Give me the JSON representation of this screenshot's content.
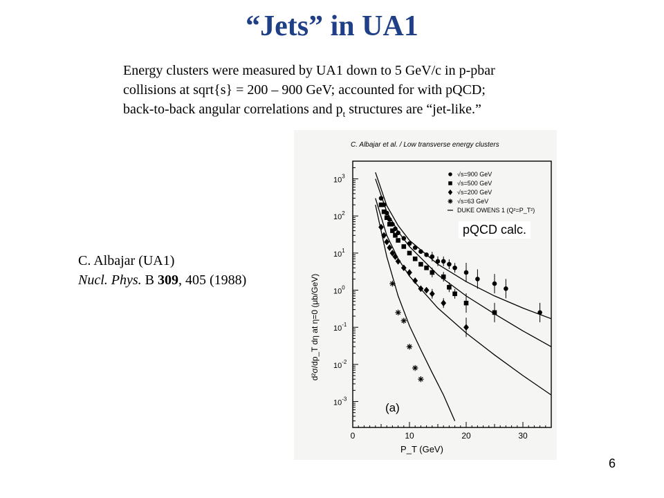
{
  "slide": {
    "title": "“Jets” in UA1",
    "desc_lines": [
      "Energy clusters were measured by UA1 down to 5 GeV/c in p-pbar",
      "collisions at sqrt{s} = 200 – 900 GeV; accounted for with pQCD;",
      "back-to-back angular correlations and p",
      "t",
      " structures are “jet-like.”"
    ],
    "citation": {
      "author": "C. Albajar (UA1)",
      "journal": "Nucl. Phys.",
      "series": " B ",
      "volume": "309",
      "pages_year": ", 405 (1988)"
    },
    "page_number": "6",
    "overlay_label": "pQCD calc."
  },
  "colors": {
    "title": "#1f3f86",
    "text": "#000000"
  },
  "chart_data": {
    "type": "scatter",
    "header": "C. Albajar et al. / Low transverse energy clusters",
    "panel_label": "(a)",
    "xlabel": "P_T (GeV)",
    "ylabel": "d²σ/dp_T dη at η=0 (μb/GeV)",
    "x_scale": "linear",
    "y_scale": "log",
    "xlim": [
      0,
      35
    ],
    "ylim": [
      0.0002,
      3000
    ],
    "x_ticks": [
      0,
      10,
      20,
      30
    ],
    "y_ticks": [
      {
        "value": 0.001,
        "label": "10",
        "exp": "-3"
      },
      {
        "value": 0.01,
        "label": "10",
        "exp": "-2"
      },
      {
        "value": 0.1,
        "label": "10",
        "exp": "-1"
      },
      {
        "value": 1,
        "label": "10",
        "exp": "0"
      },
      {
        "value": 10,
        "label": "10",
        "exp": "1"
      },
      {
        "value": 100,
        "label": "10",
        "exp": "2"
      },
      {
        "value": 1000,
        "label": "10",
        "exp": "3"
      }
    ],
    "legend": [
      "√s=900 GeV",
      "√s=500 GeV",
      "√s=200 GeV",
      "√s=63 GeV",
      "DUKE OWENS 1 (Q²=P_T²)"
    ],
    "series": [
      {
        "name": "√s=900 GeV",
        "marker": "circle",
        "x": [
          5,
          5.5,
          6,
          6.5,
          7,
          7.5,
          8,
          9,
          10,
          11,
          12,
          13,
          14,
          15,
          16,
          17,
          18,
          20,
          22,
          25,
          27,
          33
        ],
        "y": [
          300,
          200,
          120,
          80,
          60,
          45,
          35,
          25,
          18,
          14,
          11,
          9,
          8,
          6,
          6,
          5,
          4,
          3,
          2,
          1.5,
          1.1,
          0.25
        ]
      },
      {
        "name": "√s=500 GeV",
        "marker": "square",
        "x": [
          5,
          5.5,
          6,
          6.5,
          7,
          7.5,
          8,
          9,
          10,
          11,
          12,
          13,
          14,
          16,
          17,
          18,
          20,
          25
        ],
        "y": [
          200,
          130,
          90,
          60,
          40,
          30,
          22,
          15,
          10,
          7,
          5,
          4,
          3,
          2.3,
          1.2,
          0.8,
          0.45,
          0.25
        ]
      },
      {
        "name": "√s=200 GeV",
        "marker": "diamond",
        "x": [
          5,
          5.5,
          6,
          6.5,
          7,
          7.5,
          8,
          9,
          10,
          11,
          12,
          13,
          14,
          16,
          20
        ],
        "y": [
          50,
          30,
          20,
          14,
          10,
          8,
          6,
          4,
          3,
          1.8,
          1.1,
          1,
          0.8,
          0.45,
          0.1
        ]
      },
      {
        "name": "√s=63 GeV",
        "marker": "star",
        "x": [
          7,
          8,
          9,
          10,
          11,
          12
        ],
        "y": [
          1.5,
          0.25,
          0.15,
          0.03,
          0.008,
          0.004
        ]
      }
    ],
    "curves": [
      {
        "name": "DUKE OWENS 1 (Q²=P_T²) √s=900 GeV",
        "x": [
          4,
          6,
          8,
          10,
          15,
          20,
          25,
          30,
          35
        ],
        "y": [
          1500,
          190,
          55,
          22,
          5,
          1.7,
          0.7,
          0.33,
          0.17
        ]
      },
      {
        "name": "DUKE OWENS 1 (Q²=P_T²) √s=500 GeV",
        "x": [
          4,
          6,
          8,
          10,
          15,
          20,
          25,
          30,
          35
        ],
        "y": [
          1000,
          130,
          38,
          15,
          2.6,
          0.7,
          0.23,
          0.08,
          0.03
        ]
      },
      {
        "name": "DUKE OWENS 1 (Q²=P_T²) √s=200 GeV",
        "x": [
          4,
          6,
          8,
          10,
          15,
          20,
          25,
          30,
          35
        ],
        "y": [
          300,
          30,
          7,
          2.4,
          0.33,
          0.07,
          0.018,
          0.005,
          0.0015
        ]
      },
      {
        "name": "DUKE OWENS 1 (Q²=P_T²) √s=63 GeV",
        "x": [
          4,
          6,
          8,
          10,
          12,
          14,
          16,
          18
        ],
        "y": [
          200,
          8,
          0.7,
          0.11,
          0.025,
          0.006,
          0.0015,
          0.0003
        ]
      }
    ]
  }
}
